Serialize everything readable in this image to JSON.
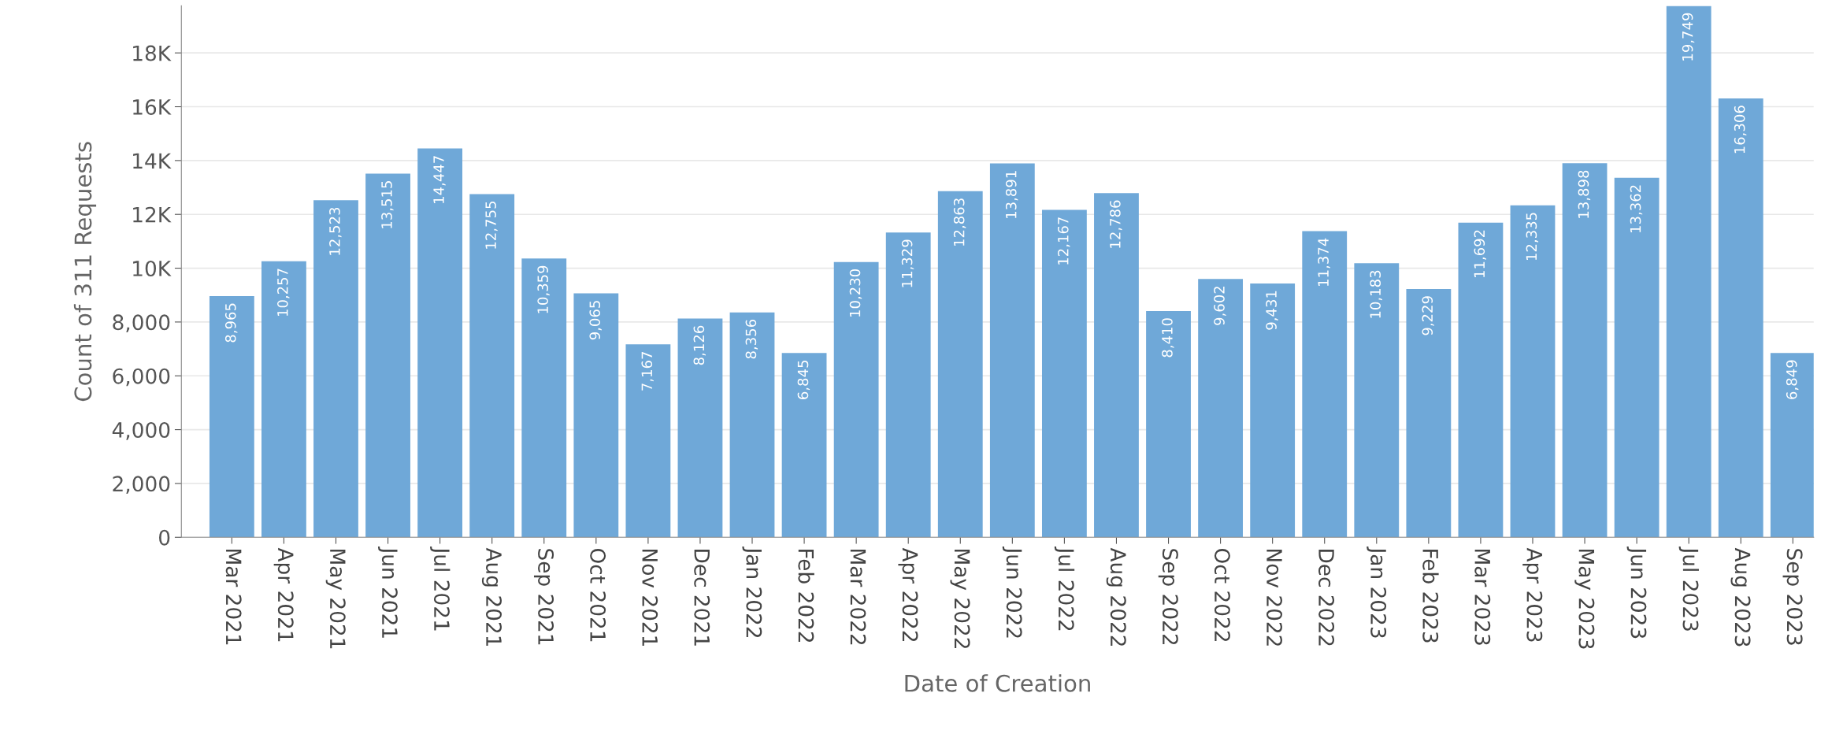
{
  "chart_data": {
    "type": "bar",
    "xlabel": "Date of Creation",
    "ylabel": "Count of 311 Requests",
    "categories": [
      "Mar 2021",
      "Apr 2021",
      "May 2021",
      "Jun 2021",
      "Jul 2021",
      "Aug 2021",
      "Sep 2021",
      "Oct 2021",
      "Nov 2021",
      "Dec 2021",
      "Jan 2022",
      "Feb 2022",
      "Mar 2022",
      "Apr 2022",
      "May 2022",
      "Jun 2022",
      "Jul 2022",
      "Aug 2022",
      "Sep 2022",
      "Oct 2022",
      "Nov 2022",
      "Dec 2022",
      "Jan 2023",
      "Feb 2023",
      "Mar 2023",
      "Apr 2023",
      "May 2023",
      "Jun 2023",
      "Jul 2023",
      "Aug 2023",
      "Sep 2023"
    ],
    "values": [
      8965,
      10257,
      12523,
      13515,
      14447,
      12755,
      10359,
      9065,
      7167,
      8126,
      8356,
      6845,
      10230,
      11329,
      12863,
      13891,
      12167,
      12786,
      8410,
      9602,
      9431,
      11374,
      10183,
      9229,
      11692,
      12335,
      13898,
      13362,
      19749,
      16306,
      6849
    ],
    "color": "#6fa8d8",
    "value_labels": [
      "8,965",
      "10,257",
      "12,523",
      "13,515",
      "14,447",
      "12,755",
      "10,359",
      "9,065",
      "7,167",
      "8,126",
      "8,356",
      "6,845",
      "10,230",
      "11,329",
      "12,863",
      "13,891",
      "12,167",
      "12,786",
      "8,410",
      "9,602",
      "9,431",
      "11,374",
      "10,183",
      "9,229",
      "11,692",
      "12,335",
      "13,898",
      "13,362",
      "19,749",
      "16,306",
      "6,849"
    ],
    "ylim": [
      0,
      19749
    ],
    "yticks": [
      0,
      {
        "value": 2000,
        "label": "2,000"
      },
      {
        "value": 4000,
        "label": "4,000"
      },
      {
        "value": 6000,
        "label": "6,000"
      },
      {
        "value": 8000,
        "label": "8,000"
      },
      {
        "value": 10000,
        "label": "10K"
      },
      {
        "value": 12000,
        "label": "12K"
      },
      {
        "value": 14000,
        "label": "14K"
      },
      {
        "value": 16000,
        "label": "16K"
      },
      {
        "value": 18000,
        "label": "18K"
      }
    ],
    "grid": "y"
  }
}
